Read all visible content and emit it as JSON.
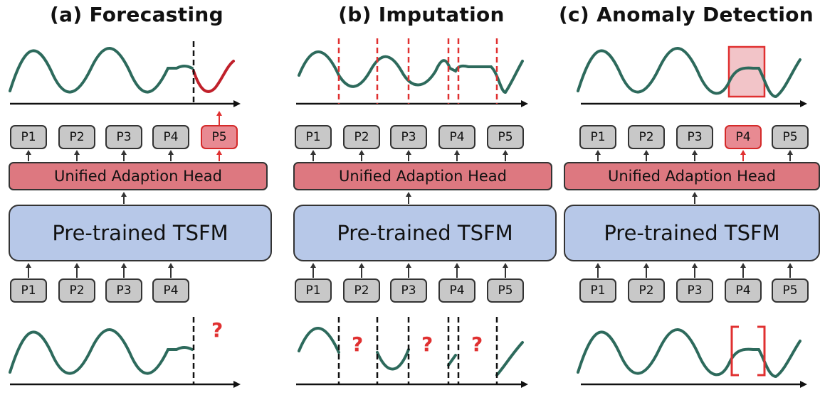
{
  "panels": [
    {
      "title": "(a) Forecasting",
      "head_label": "Unified Adaption Head",
      "backbone_label": "Pre-trained TSFM",
      "output_patches": [
        "P1",
        "P2",
        "P3",
        "P4",
        "P5"
      ],
      "highlighted_output": "P5",
      "input_patches": [
        "P1",
        "P2",
        "P3",
        "P4"
      ],
      "question_mark": "?"
    },
    {
      "title": "(b) Imputation",
      "head_label": "Unified Adaption Head",
      "backbone_label": "Pre-trained TSFM",
      "output_patches": [
        "P1",
        "P2",
        "P3",
        "P4",
        "P5"
      ],
      "input_patches": [
        "P1",
        "P2",
        "P3",
        "P4",
        "P5"
      ],
      "question_mark": "?"
    },
    {
      "title": "(c) Anomaly Detection",
      "head_label": "Unified Adaption Head",
      "backbone_label": "Pre-trained TSFM",
      "output_patches": [
        "P1",
        "P2",
        "P3",
        "P4",
        "P5"
      ],
      "highlighted_output": "P4",
      "input_patches": [
        "P1",
        "P2",
        "P3",
        "P4",
        "P5"
      ]
    }
  ],
  "colors": {
    "curve": "#2d6a5c",
    "forecast_curve": "#c0202a",
    "marker_red": "#e03030",
    "head_fill": "#dd7880",
    "backbone_fill": "#b7c8e8",
    "patch_fill": "#c8c8c8",
    "patch_highlight": "#e88a92"
  }
}
